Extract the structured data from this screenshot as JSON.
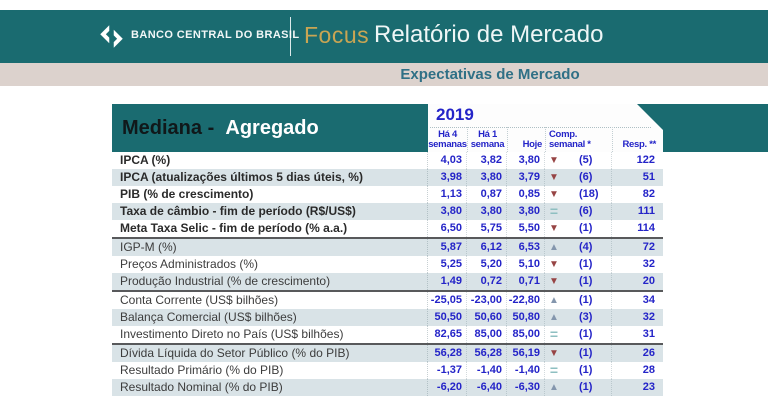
{
  "header": {
    "logo_text": "BANCO CENTRAL DO BRASIL",
    "brand": "Focus",
    "title": "Relatório de Mercado"
  },
  "subheader": {
    "title": "Expectativas de Mercado"
  },
  "colors": {
    "teal": "#1a6b70",
    "gold": "#c9a553",
    "beige": "#dcd2cd",
    "value_blue": "#2424c8",
    "alt_row": "#d9e3e7",
    "trend_down": "#974444",
    "trend_up": "#8496ad",
    "trend_equal": "#8ebfc1"
  },
  "table": {
    "title_left": "Mediana -",
    "title_right": "Agregado",
    "year": "2019",
    "columns": [
      "Há 4 semanas",
      "Há 1 semana",
      "Hoje",
      "Comp. semanal *",
      "Resp. **"
    ],
    "groups": [
      {
        "rows": [
          {
            "label": "IPCA (%)",
            "bold": true,
            "ha4": "4,03",
            "ha1": "3,82",
            "hoje": "3,80",
            "trend": "down",
            "comp": "(5)",
            "resp": "122"
          },
          {
            "label": "IPCA (atualizações últimos 5 dias úteis, %)",
            "bold": true,
            "ha4": "3,98",
            "ha1": "3,80",
            "hoje": "3,79",
            "trend": "down",
            "comp": "(6)",
            "resp": "51"
          },
          {
            "label": "PIB (% de crescimento)",
            "bold": true,
            "ha4": "1,13",
            "ha1": "0,87",
            "hoje": "0,85",
            "trend": "down",
            "comp": "(18)",
            "resp": "82"
          },
          {
            "label": "Taxa de câmbio - fim de período (R$/US$)",
            "bold": true,
            "ha4": "3,80",
            "ha1": "3,80",
            "hoje": "3,80",
            "trend": "eq",
            "comp": "(6)",
            "resp": "111"
          },
          {
            "label": "Meta Taxa Selic - fim de período (% a.a.)",
            "bold": true,
            "ha4": "6,50",
            "ha1": "5,75",
            "hoje": "5,50",
            "trend": "down",
            "comp": "(1)",
            "resp": "114"
          }
        ]
      },
      {
        "rows": [
          {
            "label": "IGP-M (%)",
            "bold": false,
            "ha4": "5,87",
            "ha1": "6,12",
            "hoje": "6,53",
            "trend": "up",
            "comp": "(4)",
            "resp": "72"
          },
          {
            "label": "Preços Administrados (%)",
            "bold": false,
            "ha4": "5,25",
            "ha1": "5,20",
            "hoje": "5,10",
            "trend": "down",
            "comp": "(1)",
            "resp": "32"
          },
          {
            "label": "Produção Industrial (% de crescimento)",
            "bold": false,
            "ha4": "1,49",
            "ha1": "0,72",
            "hoje": "0,71",
            "trend": "down",
            "comp": "(1)",
            "resp": "20"
          }
        ]
      },
      {
        "rows": [
          {
            "label": "Conta Corrente (US$ bilhões)",
            "bold": false,
            "ha4": "-25,05",
            "ha1": "-23,00",
            "hoje": "-22,80",
            "trend": "up",
            "comp": "(1)",
            "resp": "34"
          },
          {
            "label": "Balança Comercial (US$ bilhões)",
            "bold": false,
            "ha4": "50,50",
            "ha1": "50,60",
            "hoje": "50,80",
            "trend": "up",
            "comp": "(3)",
            "resp": "32"
          },
          {
            "label": "Investimento Direto no País (US$ bilhões)",
            "bold": false,
            "ha4": "82,65",
            "ha1": "85,00",
            "hoje": "85,00",
            "trend": "eq",
            "comp": "(1)",
            "resp": "31"
          }
        ]
      },
      {
        "rows": [
          {
            "label": "Dívida Líquida do Setor Público (% do PIB)",
            "bold": false,
            "ha4": "56,28",
            "ha1": "56,28",
            "hoje": "56,19",
            "trend": "down",
            "comp": "(1)",
            "resp": "26"
          },
          {
            "label": "Resultado Primário (% do PIB)",
            "bold": false,
            "ha4": "-1,37",
            "ha1": "-1,40",
            "hoje": "-1,40",
            "trend": "eq",
            "comp": "(1)",
            "resp": "28"
          },
          {
            "label": "Resultado Nominal (% do PIB)",
            "bold": false,
            "ha4": "-6,20",
            "ha1": "-6,40",
            "hoje": "-6,30",
            "trend": "up",
            "comp": "(1)",
            "resp": "23"
          }
        ]
      }
    ]
  }
}
